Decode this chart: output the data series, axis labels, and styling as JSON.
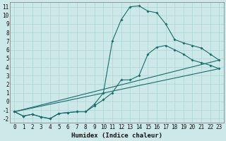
{
  "xlabel": "Humidex (Indice chaleur)",
  "background_color": "#cce8e8",
  "grid_color": "#aad4d4",
  "line_color": "#1a6b6b",
  "xlim": [
    -0.5,
    23.5
  ],
  "ylim": [
    -2.5,
    11.5
  ],
  "xticks": [
    0,
    1,
    2,
    3,
    4,
    5,
    6,
    7,
    8,
    9,
    10,
    11,
    12,
    13,
    14,
    15,
    16,
    17,
    18,
    19,
    20,
    21,
    22,
    23
  ],
  "yticks": [
    -2,
    -1,
    0,
    1,
    2,
    3,
    4,
    5,
    6,
    7,
    8,
    9,
    10,
    11
  ],
  "series1_x": [
    0,
    1,
    2,
    3,
    4,
    5,
    6,
    7,
    8,
    9,
    10,
    11,
    12,
    13,
    14,
    15,
    16,
    17,
    18,
    19,
    20,
    21,
    22,
    23
  ],
  "series1_y": [
    -1.2,
    -1.7,
    -1.5,
    -1.8,
    -2.0,
    -1.4,
    -1.3,
    -1.2,
    -1.2,
    -0.3,
    1.0,
    7.0,
    9.5,
    11.0,
    11.1,
    10.5,
    10.3,
    9.0,
    7.2,
    6.8,
    6.5,
    6.2,
    5.5,
    4.8
  ],
  "series2_x": [
    0,
    1,
    2,
    3,
    4,
    5,
    6,
    7,
    8,
    9,
    10,
    11,
    12,
    13,
    14,
    15,
    16,
    17,
    18,
    19,
    20,
    21,
    22,
    23
  ],
  "series2_y": [
    -1.2,
    -1.7,
    -1.5,
    -1.8,
    -2.0,
    -1.4,
    -1.3,
    -1.2,
    -1.2,
    -0.5,
    0.2,
    1.0,
    2.5,
    2.5,
    3.0,
    5.5,
    6.3,
    6.5,
    6.0,
    5.5,
    4.8,
    4.5,
    4.2,
    3.8
  ],
  "series3_x": [
    0,
    23
  ],
  "series3_y": [
    -1.2,
    4.8
  ],
  "series4_x": [
    0,
    23
  ],
  "series4_y": [
    -1.2,
    3.8
  ]
}
